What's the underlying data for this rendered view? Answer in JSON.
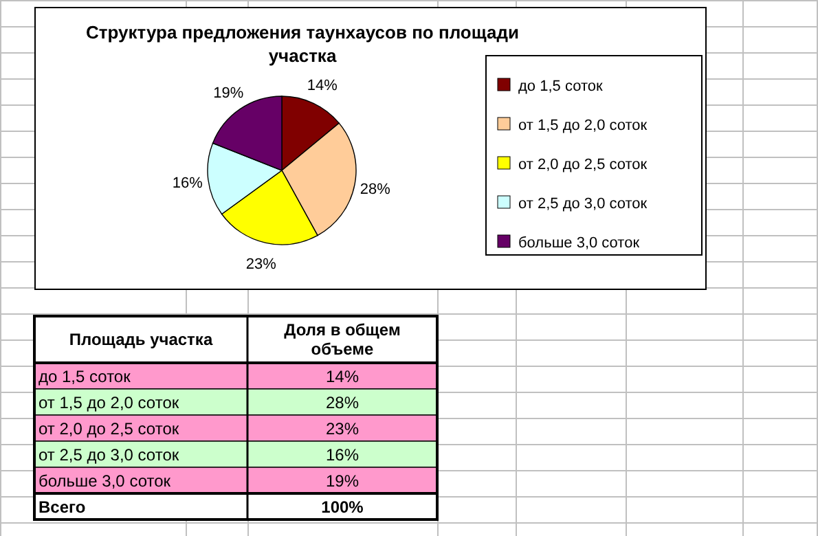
{
  "chart_data": {
    "type": "pie",
    "title": "Структура предложения таунхаусов по площади участка",
    "categories": [
      "до 1,5 соток",
      "от 1,5 до 2,0 соток",
      "от 2,0 до 2,5 соток",
      "от 2,5 до 3,0 соток",
      "больше 3,0 соток"
    ],
    "values": [
      14,
      28,
      23,
      16,
      19
    ],
    "colors": [
      "#800000",
      "#ffcc99",
      "#ffff00",
      "#ccffff",
      "#660066"
    ],
    "value_labels": [
      "14%",
      "28%",
      "23%",
      "16%",
      "19%"
    ],
    "legend": "right",
    "annotations": [
      "Площадь участка",
      "Доля в общем объеме",
      "Всего",
      "100%"
    ]
  }
}
